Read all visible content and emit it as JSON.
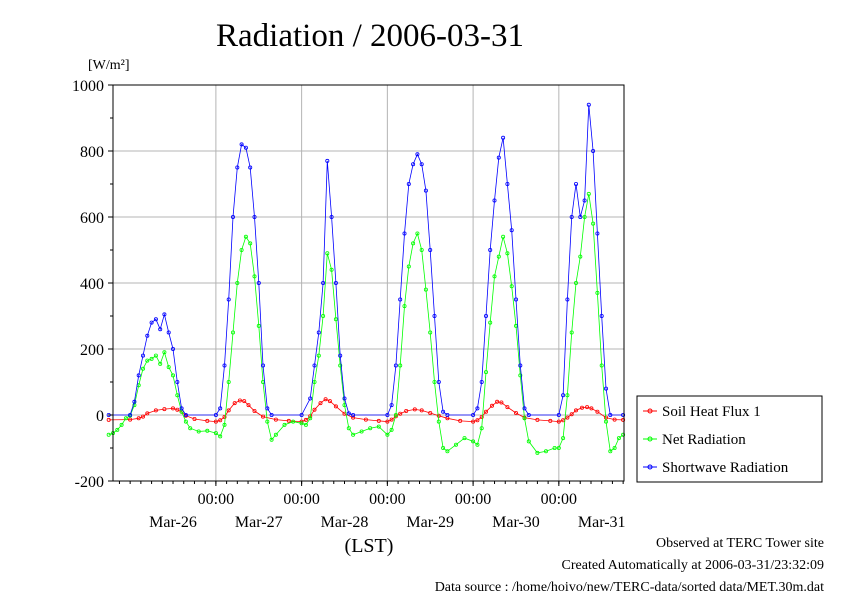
{
  "chart_data": {
    "type": "line",
    "title": "Radiation / 2006-03-31",
    "unit": "[W/m²]",
    "xlabel": "(LST)",
    "x_tick_times": [
      "00:00",
      "00:00",
      "00:00",
      "00:00",
      "00:00"
    ],
    "x_day_labels": [
      "Mar-26",
      "Mar-27",
      "Mar-28",
      "Mar-29",
      "Mar-30",
      "Mar-31"
    ],
    "ylim": [
      -200,
      1000
    ],
    "y_ticks": [
      -200,
      0,
      200,
      400,
      600,
      800,
      1000
    ],
    "grid": true,
    "legend_position": "right",
    "series": [
      {
        "name": "Soil Heat Flux 1",
        "color": "#ff0000",
        "points": [
          [
            -0.25,
            -15
          ],
          [
            0.0,
            -14
          ],
          [
            0.1,
            -10
          ],
          [
            0.15,
            -5
          ],
          [
            0.2,
            5
          ],
          [
            0.3,
            14
          ],
          [
            0.4,
            18
          ],
          [
            0.5,
            20
          ],
          [
            0.55,
            16
          ],
          [
            0.6,
            10
          ],
          [
            0.65,
            -2
          ],
          [
            0.75,
            -12
          ],
          [
            0.9,
            -18
          ],
          [
            1.0,
            -20
          ],
          [
            1.05,
            -16
          ],
          [
            1.1,
            -6
          ],
          [
            1.15,
            14
          ],
          [
            1.22,
            36
          ],
          [
            1.28,
            44
          ],
          [
            1.33,
            42
          ],
          [
            1.38,
            30
          ],
          [
            1.45,
            12
          ],
          [
            1.55,
            -5
          ],
          [
            1.7,
            -14
          ],
          [
            1.85,
            -18
          ],
          [
            2.0,
            -20
          ],
          [
            2.05,
            -15
          ],
          [
            2.1,
            -4
          ],
          [
            2.15,
            16
          ],
          [
            2.22,
            36
          ],
          [
            2.28,
            48
          ],
          [
            2.33,
            42
          ],
          [
            2.4,
            26
          ],
          [
            2.5,
            4
          ],
          [
            2.6,
            -8
          ],
          [
            2.75,
            -14
          ],
          [
            2.9,
            -18
          ],
          [
            3.0,
            -20
          ],
          [
            3.05,
            -14
          ],
          [
            3.1,
            -4
          ],
          [
            3.15,
            4
          ],
          [
            3.22,
            12
          ],
          [
            3.32,
            17
          ],
          [
            3.4,
            14
          ],
          [
            3.5,
            6
          ],
          [
            3.6,
            -2
          ],
          [
            3.7,
            -10
          ],
          [
            3.85,
            -18
          ],
          [
            4.0,
            -20
          ],
          [
            4.05,
            -16
          ],
          [
            4.1,
            -6
          ],
          [
            4.15,
            10
          ],
          [
            4.22,
            28
          ],
          [
            4.28,
            40
          ],
          [
            4.33,
            38
          ],
          [
            4.4,
            24
          ],
          [
            4.5,
            6
          ],
          [
            4.6,
            -8
          ],
          [
            4.75,
            -15
          ],
          [
            4.9,
            -18
          ],
          [
            5.0,
            -20
          ],
          [
            5.05,
            -16
          ],
          [
            5.1,
            -8
          ],
          [
            5.15,
            2
          ],
          [
            5.2,
            14
          ],
          [
            5.27,
            22
          ],
          [
            5.33,
            24
          ],
          [
            5.38,
            20
          ],
          [
            5.45,
            10
          ],
          [
            5.55,
            -8
          ],
          [
            5.65,
            -14
          ],
          [
            5.75,
            -15
          ]
        ]
      },
      {
        "name": "Net Radiation",
        "color": "#00ff00",
        "points": [
          [
            -0.25,
            -60
          ],
          [
            -0.2,
            -55
          ],
          [
            -0.15,
            -45
          ],
          [
            -0.1,
            -30
          ],
          [
            -0.05,
            -10
          ],
          [
            0.0,
            -2
          ],
          [
            0.05,
            30
          ],
          [
            0.1,
            90
          ],
          [
            0.15,
            140
          ],
          [
            0.2,
            165
          ],
          [
            0.25,
            170
          ],
          [
            0.3,
            180
          ],
          [
            0.35,
            155
          ],
          [
            0.4,
            190
          ],
          [
            0.45,
            145
          ],
          [
            0.5,
            120
          ],
          [
            0.55,
            60
          ],
          [
            0.6,
            10
          ],
          [
            0.65,
            -20
          ],
          [
            0.7,
            -40
          ],
          [
            0.8,
            -50
          ],
          [
            0.9,
            -48
          ],
          [
            1.0,
            -55
          ],
          [
            1.05,
            -65
          ],
          [
            1.1,
            -30
          ],
          [
            1.15,
            100
          ],
          [
            1.2,
            250
          ],
          [
            1.25,
            400
          ],
          [
            1.3,
            500
          ],
          [
            1.35,
            540
          ],
          [
            1.4,
            520
          ],
          [
            1.45,
            420
          ],
          [
            1.5,
            270
          ],
          [
            1.55,
            100
          ],
          [
            1.6,
            -20
          ],
          [
            1.65,
            -75
          ],
          [
            1.7,
            -60
          ],
          [
            1.8,
            -30
          ],
          [
            1.9,
            -20
          ],
          [
            2.0,
            -25
          ],
          [
            2.05,
            -30
          ],
          [
            2.1,
            -10
          ],
          [
            2.15,
            100
          ],
          [
            2.2,
            180
          ],
          [
            2.25,
            300
          ],
          [
            2.3,
            490
          ],
          [
            2.35,
            440
          ],
          [
            2.4,
            290
          ],
          [
            2.45,
            150
          ],
          [
            2.5,
            30
          ],
          [
            2.55,
            -40
          ],
          [
            2.6,
            -60
          ],
          [
            2.7,
            -50
          ],
          [
            2.8,
            -40
          ],
          [
            2.9,
            -35
          ],
          [
            3.0,
            -60
          ],
          [
            3.05,
            -45
          ],
          [
            3.1,
            0
          ],
          [
            3.15,
            150
          ],
          [
            3.2,
            330
          ],
          [
            3.25,
            450
          ],
          [
            3.3,
            520
          ],
          [
            3.35,
            550
          ],
          [
            3.4,
            500
          ],
          [
            3.45,
            380
          ],
          [
            3.5,
            250
          ],
          [
            3.55,
            100
          ],
          [
            3.6,
            -20
          ],
          [
            3.65,
            -100
          ],
          [
            3.7,
            -110
          ],
          [
            3.8,
            -90
          ],
          [
            3.9,
            -70
          ],
          [
            4.0,
            -80
          ],
          [
            4.05,
            -90
          ],
          [
            4.1,
            -40
          ],
          [
            4.15,
            130
          ],
          [
            4.2,
            280
          ],
          [
            4.25,
            420
          ],
          [
            4.3,
            480
          ],
          [
            4.35,
            540
          ],
          [
            4.4,
            490
          ],
          [
            4.45,
            390
          ],
          [
            4.5,
            270
          ],
          [
            4.55,
            120
          ],
          [
            4.6,
            -10
          ],
          [
            4.65,
            -80
          ],
          [
            4.75,
            -115
          ],
          [
            4.85,
            -110
          ],
          [
            4.95,
            -100
          ],
          [
            5.0,
            -100
          ],
          [
            5.05,
            -70
          ],
          [
            5.1,
            60
          ],
          [
            5.15,
            250
          ],
          [
            5.2,
            400
          ],
          [
            5.25,
            480
          ],
          [
            5.3,
            600
          ],
          [
            5.35,
            670
          ],
          [
            5.4,
            580
          ],
          [
            5.45,
            370
          ],
          [
            5.5,
            150
          ],
          [
            5.55,
            -20
          ],
          [
            5.6,
            -110
          ],
          [
            5.65,
            -100
          ],
          [
            5.7,
            -70
          ],
          [
            5.75,
            -60
          ]
        ]
      },
      {
        "name": "Shortwave Radiation",
        "color": "#0000ff",
        "points": [
          [
            -0.25,
            0
          ],
          [
            0.0,
            0
          ],
          [
            0.05,
            40
          ],
          [
            0.1,
            120
          ],
          [
            0.15,
            180
          ],
          [
            0.2,
            240
          ],
          [
            0.25,
            280
          ],
          [
            0.3,
            290
          ],
          [
            0.35,
            260
          ],
          [
            0.4,
            305
          ],
          [
            0.45,
            250
          ],
          [
            0.5,
            200
          ],
          [
            0.55,
            100
          ],
          [
            0.6,
            20
          ],
          [
            0.65,
            0
          ],
          [
            1.0,
            0
          ],
          [
            1.05,
            20
          ],
          [
            1.1,
            150
          ],
          [
            1.15,
            350
          ],
          [
            1.2,
            600
          ],
          [
            1.25,
            750
          ],
          [
            1.3,
            820
          ],
          [
            1.35,
            810
          ],
          [
            1.4,
            750
          ],
          [
            1.45,
            600
          ],
          [
            1.5,
            400
          ],
          [
            1.55,
            150
          ],
          [
            1.6,
            20
          ],
          [
            1.65,
            0
          ],
          [
            2.0,
            0
          ],
          [
            2.1,
            50
          ],
          [
            2.15,
            150
          ],
          [
            2.2,
            250
          ],
          [
            2.25,
            400
          ],
          [
            2.3,
            770
          ],
          [
            2.35,
            600
          ],
          [
            2.4,
            400
          ],
          [
            2.45,
            180
          ],
          [
            2.5,
            50
          ],
          [
            2.55,
            5
          ],
          [
            2.6,
            0
          ],
          [
            3.0,
            0
          ],
          [
            3.05,
            30
          ],
          [
            3.1,
            150
          ],
          [
            3.15,
            350
          ],
          [
            3.2,
            550
          ],
          [
            3.25,
            700
          ],
          [
            3.3,
            760
          ],
          [
            3.35,
            790
          ],
          [
            3.4,
            760
          ],
          [
            3.45,
            680
          ],
          [
            3.5,
            500
          ],
          [
            3.55,
            300
          ],
          [
            3.6,
            100
          ],
          [
            3.65,
            10
          ],
          [
            3.7,
            0
          ],
          [
            4.0,
            0
          ],
          [
            4.05,
            20
          ],
          [
            4.1,
            100
          ],
          [
            4.15,
            300
          ],
          [
            4.2,
            500
          ],
          [
            4.25,
            650
          ],
          [
            4.3,
            780
          ],
          [
            4.35,
            840
          ],
          [
            4.4,
            700
          ],
          [
            4.45,
            560
          ],
          [
            4.5,
            350
          ],
          [
            4.55,
            150
          ],
          [
            4.6,
            20
          ],
          [
            4.65,
            0
          ],
          [
            5.0,
            0
          ],
          [
            5.05,
            60
          ],
          [
            5.1,
            350
          ],
          [
            5.15,
            600
          ],
          [
            5.2,
            700
          ],
          [
            5.25,
            600
          ],
          [
            5.3,
            650
          ],
          [
            5.35,
            940
          ],
          [
            5.4,
            800
          ],
          [
            5.45,
            550
          ],
          [
            5.5,
            300
          ],
          [
            5.55,
            80
          ],
          [
            5.6,
            0
          ],
          [
            5.75,
            0
          ]
        ]
      }
    ]
  },
  "footer": {
    "line1": "Observed at TERC Tower site",
    "line2": "Created Automatically at 2006-03-31/23:32:09",
    "line3": "Data source : /home/hoivo/new/TERC-data/sorted  data/MET.30m.dat"
  }
}
